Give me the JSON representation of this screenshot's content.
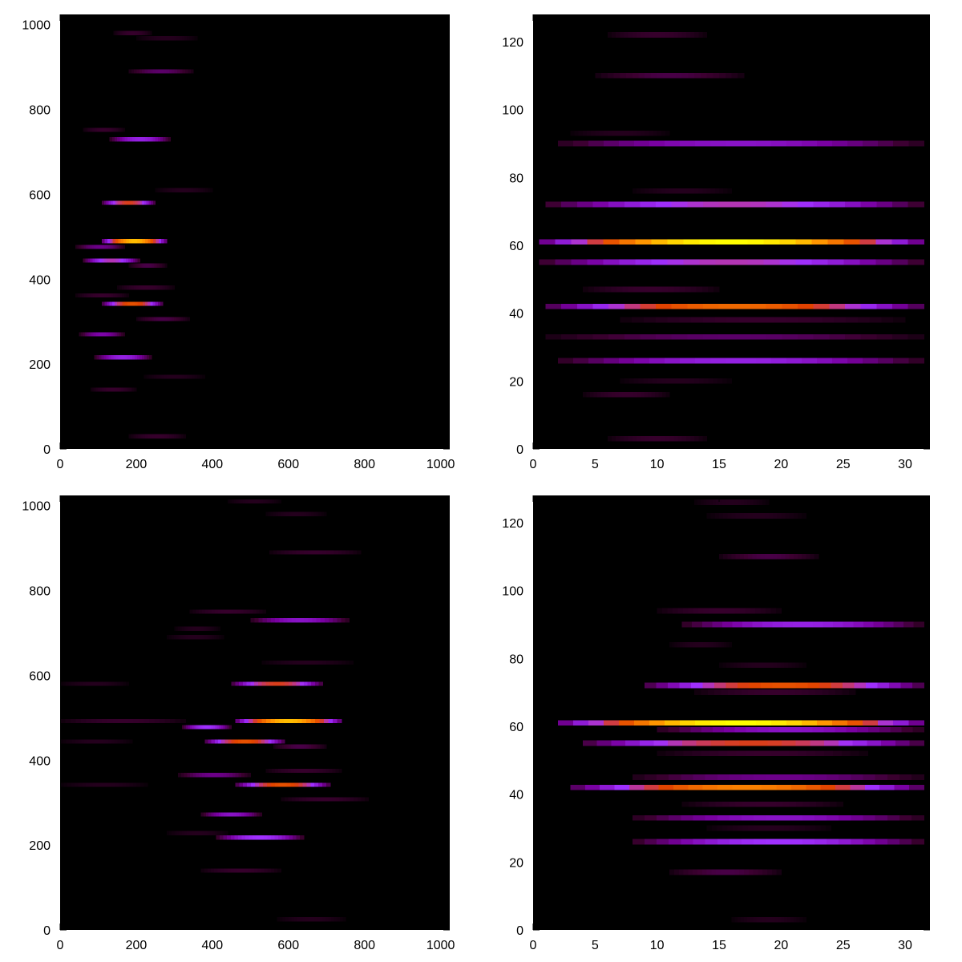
{
  "chart_data": [
    {
      "type": "heatmap",
      "panel": "top-left",
      "title": "",
      "xlabel": "",
      "ylabel": "",
      "xlim": [
        0,
        1024
      ],
      "ylim": [
        0,
        1024
      ],
      "xticks": [
        "0",
        "200",
        "400",
        "600",
        "800",
        "1000"
      ],
      "yticks": [
        "0",
        "200",
        "400",
        "600",
        "800",
        "1000"
      ],
      "background": "#000000",
      "colormap": [
        "#000000",
        "#3c0030",
        "#7800a0",
        "#a030ff",
        "#e04000",
        "#ff9000",
        "#ffff00"
      ],
      "bands": [
        {
          "y": 980,
          "x0": 140,
          "x1": 240,
          "intensity": 0.15
        },
        {
          "y": 968,
          "x0": 200,
          "x1": 360,
          "intensity": 0.1
        },
        {
          "y": 890,
          "x0": 180,
          "x1": 350,
          "intensity": 0.25
        },
        {
          "y": 752,
          "x0": 60,
          "x1": 170,
          "intensity": 0.15
        },
        {
          "y": 730,
          "x0": 130,
          "x1": 290,
          "intensity": 0.45
        },
        {
          "y": 610,
          "x0": 250,
          "x1": 400,
          "intensity": 0.1
        },
        {
          "y": 580,
          "x0": 110,
          "x1": 250,
          "intensity": 0.65
        },
        {
          "y": 490,
          "x0": 110,
          "x1": 280,
          "intensity": 0.9
        },
        {
          "y": 476,
          "x0": 40,
          "x1": 170,
          "intensity": 0.3
        },
        {
          "y": 444,
          "x0": 60,
          "x1": 210,
          "intensity": 0.55
        },
        {
          "y": 432,
          "x0": 180,
          "x1": 280,
          "intensity": 0.2
        },
        {
          "y": 380,
          "x0": 150,
          "x1": 300,
          "intensity": 0.15
        },
        {
          "y": 362,
          "x0": 40,
          "x1": 180,
          "intensity": 0.15
        },
        {
          "y": 342,
          "x0": 110,
          "x1": 270,
          "intensity": 0.7
        },
        {
          "y": 306,
          "x0": 200,
          "x1": 340,
          "intensity": 0.2
        },
        {
          "y": 270,
          "x0": 50,
          "x1": 170,
          "intensity": 0.35
        },
        {
          "y": 216,
          "x0": 90,
          "x1": 240,
          "intensity": 0.45
        },
        {
          "y": 170,
          "x0": 220,
          "x1": 380,
          "intensity": 0.1
        },
        {
          "y": 140,
          "x0": 80,
          "x1": 200,
          "intensity": 0.15
        },
        {
          "y": 30,
          "x0": 180,
          "x1": 330,
          "intensity": 0.15
        }
      ]
    },
    {
      "type": "heatmap",
      "panel": "top-right",
      "title": "",
      "xlabel": "",
      "ylabel": "",
      "xlim": [
        0,
        32
      ],
      "ylim": [
        0,
        128
      ],
      "xticks": [
        "0",
        "5",
        "10",
        "15",
        "20",
        "25",
        "30"
      ],
      "yticks": [
        "0",
        "20",
        "40",
        "60",
        "80",
        "100",
        "120"
      ],
      "background": "#000000",
      "colormap": [
        "#000000",
        "#3c0030",
        "#7800a0",
        "#a030ff",
        "#e04000",
        "#ff9000",
        "#ffff00"
      ],
      "bands": [
        {
          "y": 122,
          "x0": 6,
          "x1": 14,
          "intensity": 0.15
        },
        {
          "y": 110,
          "x0": 5,
          "x1": 17,
          "intensity": 0.2
        },
        {
          "y": 93,
          "x0": 3,
          "x1": 11,
          "intensity": 0.1
        },
        {
          "y": 90,
          "x0": 2,
          "x1": 31.5,
          "intensity": 0.4
        },
        {
          "y": 76,
          "x0": 8,
          "x1": 16,
          "intensity": 0.1
        },
        {
          "y": 72,
          "x0": 1,
          "x1": 31.5,
          "intensity": 0.55
        },
        {
          "y": 61,
          "x0": 0.5,
          "x1": 31.5,
          "intensity": 1.0
        },
        {
          "y": 55,
          "x0": 0.5,
          "x1": 31.5,
          "intensity": 0.55
        },
        {
          "y": 47,
          "x0": 4,
          "x1": 15,
          "intensity": 0.15
        },
        {
          "y": 42,
          "x0": 1,
          "x1": 31.5,
          "intensity": 0.75
        },
        {
          "y": 38,
          "x0": 7,
          "x1": 30,
          "intensity": 0.15
        },
        {
          "y": 33,
          "x0": 1,
          "x1": 31.5,
          "intensity": 0.25
        },
        {
          "y": 26,
          "x0": 2,
          "x1": 31.5,
          "intensity": 0.45
        },
        {
          "y": 20,
          "x0": 7,
          "x1": 16,
          "intensity": 0.1
        },
        {
          "y": 16,
          "x0": 4,
          "x1": 11,
          "intensity": 0.15
        },
        {
          "y": 3,
          "x0": 6,
          "x1": 14,
          "intensity": 0.15
        }
      ]
    },
    {
      "type": "heatmap",
      "panel": "bottom-left",
      "title": "",
      "xlabel": "",
      "ylabel": "",
      "xlim": [
        0,
        1024
      ],
      "ylim": [
        0,
        1024
      ],
      "xticks": [
        "0",
        "200",
        "400",
        "600",
        "800",
        "1000"
      ],
      "yticks": [
        "0",
        "200",
        "400",
        "600",
        "800",
        "1000"
      ],
      "background": "#000000",
      "colormap": [
        "#000000",
        "#3c0030",
        "#7800a0",
        "#a030ff",
        "#e04000",
        "#ff9000",
        "#ffff00"
      ],
      "bands": [
        {
          "y": 1010,
          "x0": 440,
          "x1": 580,
          "intensity": 0.1
        },
        {
          "y": 980,
          "x0": 540,
          "x1": 700,
          "intensity": 0.1
        },
        {
          "y": 890,
          "x0": 550,
          "x1": 790,
          "intensity": 0.15
        },
        {
          "y": 750,
          "x0": 340,
          "x1": 540,
          "intensity": 0.15
        },
        {
          "y": 730,
          "x0": 500,
          "x1": 760,
          "intensity": 0.4
        },
        {
          "y": 710,
          "x0": 300,
          "x1": 420,
          "intensity": 0.1
        },
        {
          "y": 690,
          "x0": 280,
          "x1": 430,
          "intensity": 0.1
        },
        {
          "y": 630,
          "x0": 530,
          "x1": 770,
          "intensity": 0.1
        },
        {
          "y": 580,
          "x0": 450,
          "x1": 690,
          "intensity": 0.65
        },
        {
          "y": 580,
          "x0": 0,
          "x1": 180,
          "intensity": 0.1
        },
        {
          "y": 492,
          "x0": 460,
          "x1": 740,
          "intensity": 0.9
        },
        {
          "y": 492,
          "x0": 0,
          "x1": 330,
          "intensity": 0.15
        },
        {
          "y": 478,
          "x0": 320,
          "x1": 450,
          "intensity": 0.5
        },
        {
          "y": 444,
          "x0": 380,
          "x1": 590,
          "intensity": 0.7
        },
        {
          "y": 444,
          "x0": 0,
          "x1": 190,
          "intensity": 0.1
        },
        {
          "y": 432,
          "x0": 560,
          "x1": 700,
          "intensity": 0.2
        },
        {
          "y": 375,
          "x0": 540,
          "x1": 740,
          "intensity": 0.15
        },
        {
          "y": 365,
          "x0": 310,
          "x1": 500,
          "intensity": 0.3
        },
        {
          "y": 342,
          "x0": 460,
          "x1": 710,
          "intensity": 0.7
        },
        {
          "y": 342,
          "x0": 0,
          "x1": 230,
          "intensity": 0.1
        },
        {
          "y": 308,
          "x0": 580,
          "x1": 810,
          "intensity": 0.15
        },
        {
          "y": 272,
          "x0": 370,
          "x1": 530,
          "intensity": 0.4
        },
        {
          "y": 228,
          "x0": 280,
          "x1": 440,
          "intensity": 0.1
        },
        {
          "y": 218,
          "x0": 410,
          "x1": 640,
          "intensity": 0.5
        },
        {
          "y": 140,
          "x0": 370,
          "x1": 580,
          "intensity": 0.15
        },
        {
          "y": 25,
          "x0": 570,
          "x1": 750,
          "intensity": 0.1
        }
      ]
    },
    {
      "type": "heatmap",
      "panel": "bottom-right",
      "title": "",
      "xlabel": "",
      "ylabel": "",
      "xlim": [
        0,
        32
      ],
      "ylim": [
        0,
        128
      ],
      "xticks": [
        "0",
        "5",
        "10",
        "15",
        "20",
        "25",
        "30"
      ],
      "yticks": [
        "0",
        "20",
        "40",
        "60",
        "80",
        "100",
        "120"
      ],
      "background": "#000000",
      "colormap": [
        "#000000",
        "#3c0030",
        "#7800a0",
        "#a030ff",
        "#e04000",
        "#ff9000",
        "#ffff00"
      ],
      "bands": [
        {
          "y": 126,
          "x0": 13,
          "x1": 19,
          "intensity": 0.1
        },
        {
          "y": 122,
          "x0": 14,
          "x1": 22,
          "intensity": 0.1
        },
        {
          "y": 110,
          "x0": 15,
          "x1": 23,
          "intensity": 0.2
        },
        {
          "y": 94,
          "x0": 10,
          "x1": 20,
          "intensity": 0.15
        },
        {
          "y": 90,
          "x0": 12,
          "x1": 31.5,
          "intensity": 0.45
        },
        {
          "y": 84,
          "x0": 11,
          "x1": 16,
          "intensity": 0.1
        },
        {
          "y": 78,
          "x0": 15,
          "x1": 22,
          "intensity": 0.1
        },
        {
          "y": 72,
          "x0": 9,
          "x1": 31.5,
          "intensity": 0.7
        },
        {
          "y": 70,
          "x0": 13,
          "x1": 26,
          "intensity": 0.15
        },
        {
          "y": 61,
          "x0": 2,
          "x1": 31.5,
          "intensity": 1.0
        },
        {
          "y": 59,
          "x0": 10,
          "x1": 31.5,
          "intensity": 0.4
        },
        {
          "y": 55,
          "x0": 4,
          "x1": 31.5,
          "intensity": 0.65
        },
        {
          "y": 52,
          "x0": 10,
          "x1": 27,
          "intensity": 0.15
        },
        {
          "y": 45,
          "x0": 8,
          "x1": 31.5,
          "intensity": 0.3
        },
        {
          "y": 42,
          "x0": 3,
          "x1": 31.5,
          "intensity": 0.8
        },
        {
          "y": 37,
          "x0": 12,
          "x1": 25,
          "intensity": 0.15
        },
        {
          "y": 33,
          "x0": 8,
          "x1": 31.5,
          "intensity": 0.4
        },
        {
          "y": 30,
          "x0": 14,
          "x1": 24,
          "intensity": 0.1
        },
        {
          "y": 26,
          "x0": 8,
          "x1": 31.5,
          "intensity": 0.5
        },
        {
          "y": 17,
          "x0": 11,
          "x1": 20,
          "intensity": 0.2
        },
        {
          "y": 3,
          "x0": 16,
          "x1": 22,
          "intensity": 0.1
        }
      ]
    }
  ]
}
